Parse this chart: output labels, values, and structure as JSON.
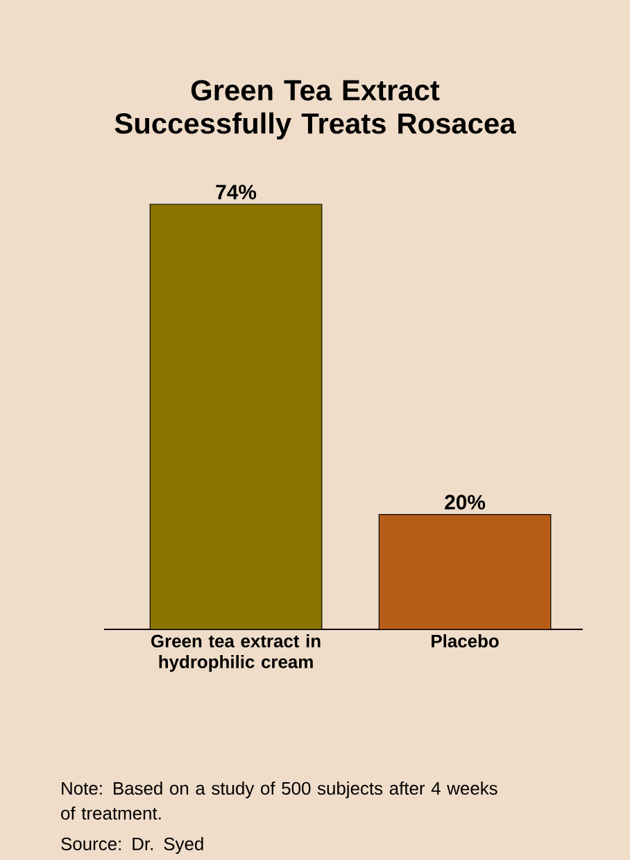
{
  "chart_data": {
    "type": "bar",
    "title": "Green Tea Extract Successfully Treats Rosacea",
    "categories": [
      "Green tea extract in hydrophilic cream",
      "Placebo"
    ],
    "values": [
      74,
      20
    ],
    "colors": [
      "#8b7300",
      "#b85d17"
    ],
    "value_labels": [
      "74%",
      "20%"
    ],
    "annotations": [
      "Note: Based on a study of 500 subjects after 4 weeks of treatment.",
      "Source: Dr. Syed"
    ]
  }
}
